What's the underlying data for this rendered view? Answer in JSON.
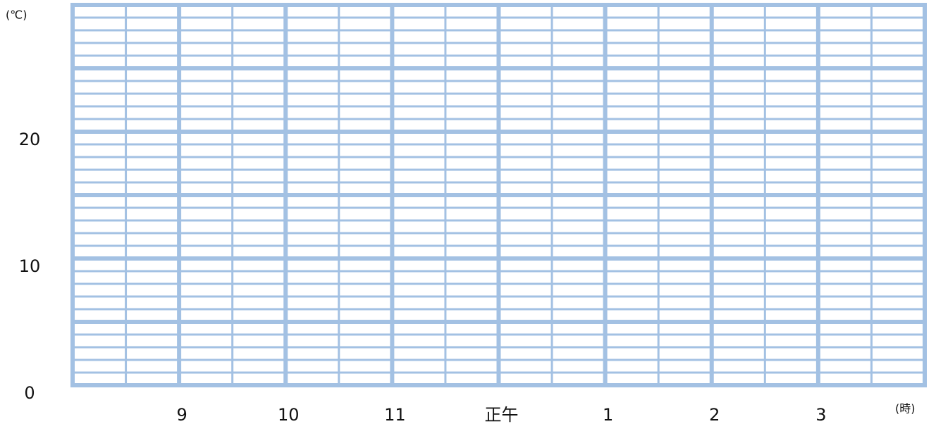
{
  "chart_data": {
    "type": "line",
    "y_label": "(℃)",
    "x_label": "(時)",
    "xlim": [
      8,
      16
    ],
    "ylim": [
      0,
      30
    ],
    "xticks": [
      9,
      10,
      11,
      {
        "value": 12,
        "label": "正午"
      },
      {
        "value": 13,
        "label": "1"
      },
      {
        "value": 14,
        "label": "2"
      },
      {
        "value": 15,
        "label": "3"
      }
    ],
    "yticks": [
      0,
      10,
      20
    ],
    "grid": {
      "color": "#a3c1e3",
      "major_x": 1,
      "minor_x": 0.5,
      "major_y": 5,
      "minor_y": 1
    },
    "series": []
  }
}
